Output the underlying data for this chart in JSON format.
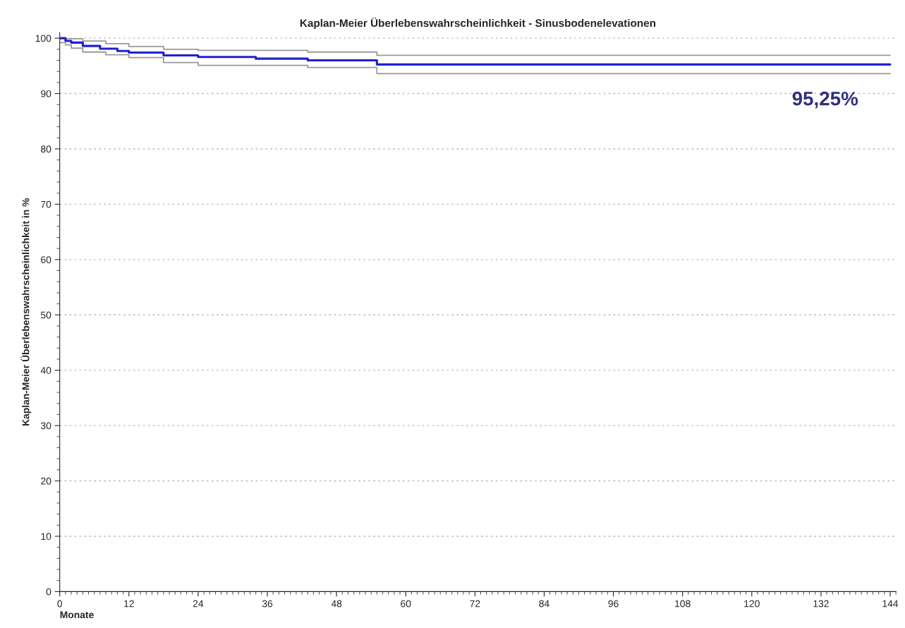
{
  "chart_data": {
    "type": "step",
    "title": "Kaplan-Meier Überlebenswahrscheinlichkeit - Sinusbodenelevationen",
    "xlabel": "Monate",
    "ylabel": "Kaplan-Meier Überlebenswahrscheinlichkeit in %",
    "series": [
      {
        "color": "#999999",
        "x": [
          0,
          1,
          4,
          8,
          12,
          18,
          24,
          43,
          55,
          144
        ],
        "values": [
          100,
          99.9,
          99.5,
          99,
          98.5,
          98,
          97.8,
          97.5,
          96.9,
          96.9
        ]
      },
      {
        "color": "#999999",
        "x": [
          0,
          1,
          2,
          4,
          8,
          12,
          18,
          24,
          43,
          55,
          144
        ],
        "values": [
          99.2,
          98.8,
          98.2,
          97.5,
          97,
          96.5,
          95.6,
          95.1,
          94.7,
          93.6,
          93.6
        ]
      },
      {
        "color": "#2020d0",
        "x": [
          0,
          1,
          2,
          4,
          7,
          10,
          12,
          18,
          24,
          34,
          43,
          55,
          144
        ],
        "values": [
          100,
          99.5,
          99.2,
          98.6,
          98.1,
          97.7,
          97.4,
          96.9,
          96.6,
          96.3,
          96.0,
          95.25,
          95.25
        ]
      }
    ],
    "xlim": [
      0,
      145
    ],
    "xticks": [
      0,
      12,
      24,
      36,
      48,
      60,
      72,
      84,
      96,
      108,
      120,
      132,
      144
    ],
    "ylim": [
      0,
      101
    ],
    "yticks": [
      0,
      10,
      20,
      30,
      40,
      50,
      60,
      70,
      80,
      90,
      100
    ],
    "grid": "y",
    "annotations": [
      "95,25%"
    ]
  }
}
